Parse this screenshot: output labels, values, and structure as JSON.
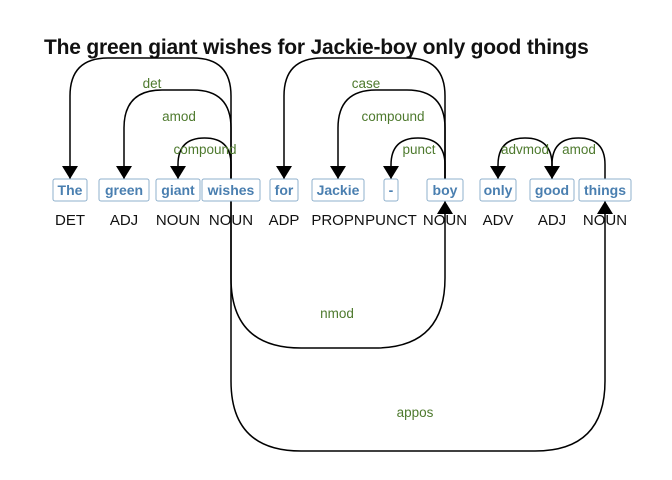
{
  "title": "The green giant wishes for Jackie-boy only good things",
  "tokens": [
    {
      "text": "The",
      "pos": "DET"
    },
    {
      "text": "green",
      "pos": "ADJ"
    },
    {
      "text": "giant",
      "pos": "NOUN"
    },
    {
      "text": "wishes",
      "pos": "NOUN"
    },
    {
      "text": "for",
      "pos": "ADP"
    },
    {
      "text": "Jackie",
      "pos": "PROPN"
    },
    {
      "text": "-",
      "pos": "PUNCT"
    },
    {
      "text": "boy",
      "pos": "NOUN"
    },
    {
      "text": "only",
      "pos": "ADV"
    },
    {
      "text": "good",
      "pos": "ADJ"
    },
    {
      "text": "things",
      "pos": "NOUN"
    }
  ],
  "arcs": [
    {
      "from": 3,
      "to": 0,
      "label": "det"
    },
    {
      "from": 3,
      "to": 1,
      "label": "amod"
    },
    {
      "from": 3,
      "to": 2,
      "label": "compound"
    },
    {
      "from": 7,
      "to": 4,
      "label": "case"
    },
    {
      "from": 7,
      "to": 5,
      "label": "compound"
    },
    {
      "from": 7,
      "to": 6,
      "label": "punct"
    },
    {
      "from": 9,
      "to": 8,
      "label": "advmod"
    },
    {
      "from": 10,
      "to": 9,
      "label": "amod"
    },
    {
      "from": 3,
      "to": 7,
      "label": "nmod"
    },
    {
      "from": 3,
      "to": 10,
      "label": "appos"
    }
  ],
  "colors": {
    "token_text": "#4a7fb0",
    "token_border": "#8fb0cc",
    "relation_label": "#4e7a2e",
    "arc": "#000000"
  }
}
